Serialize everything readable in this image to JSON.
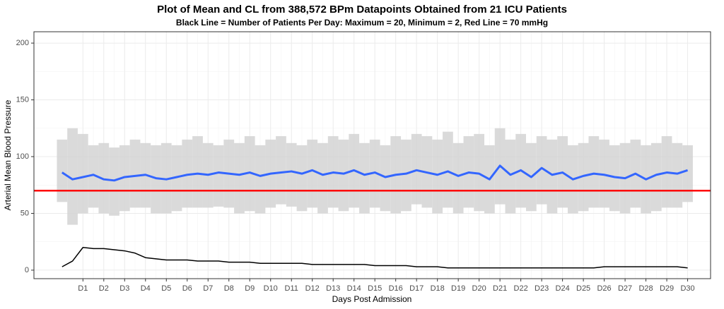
{
  "chart_data": {
    "type": "line",
    "title": "Plot of Mean and CL from 388,572 BPm Datapoints Obtained from 21 ICU Patients",
    "subtitle": "Black Line = Number of Patients Per Day: Maximum = 20, Minimum = 2, Red Line = 70 mmHg",
    "x_label": "Days Post Admission",
    "y_label": "Arterial Mean Blood Pressure",
    "x": [
      0,
      0.5,
      1,
      1.5,
      2,
      2.5,
      3,
      3.5,
      4,
      4.5,
      5,
      5.5,
      6,
      6.5,
      7,
      7.5,
      8,
      8.5,
      9,
      9.5,
      10,
      10.5,
      11,
      11.5,
      12,
      12.5,
      13,
      13.5,
      14,
      14.5,
      15,
      15.5,
      16,
      16.5,
      17,
      17.5,
      18,
      18.5,
      19,
      19.5,
      20,
      20.5,
      21,
      21.5,
      22,
      22.5,
      23,
      23.5,
      24,
      24.5,
      25,
      25.5,
      26,
      26.5,
      27,
      27.5,
      28,
      28.5,
      29,
      29.5,
      30
    ],
    "band": {
      "color": "#d3d3d3",
      "upper": [
        115,
        125,
        120,
        110,
        112,
        108,
        110,
        115,
        112,
        110,
        112,
        110,
        115,
        118,
        112,
        110,
        115,
        112,
        118,
        110,
        115,
        118,
        112,
        110,
        115,
        112,
        118,
        115,
        120,
        112,
        115,
        110,
        118,
        115,
        120,
        118,
        115,
        122,
        112,
        118,
        120,
        110,
        125,
        115,
        120,
        112,
        118,
        115,
        118,
        110,
        112,
        118,
        115,
        110,
        112,
        115,
        110,
        112,
        118,
        112,
        110
      ],
      "lower": [
        60,
        40,
        50,
        55,
        50,
        48,
        52,
        55,
        55,
        50,
        50,
        52,
        55,
        55,
        55,
        56,
        55,
        50,
        52,
        50,
        55,
        58,
        56,
        52,
        55,
        50,
        55,
        52,
        55,
        50,
        55,
        52,
        50,
        52,
        58,
        55,
        50,
        55,
        50,
        55,
        52,
        50,
        58,
        50,
        55,
        52,
        58,
        50,
        55,
        50,
        52,
        55,
        55,
        52,
        50,
        55,
        50,
        52,
        55,
        55,
        60
      ]
    },
    "series": [
      {
        "color": "#3366ff",
        "values": [
          86,
          80,
          82,
          84,
          80,
          79,
          82,
          83,
          84,
          81,
          80,
          82,
          84,
          85,
          84,
          86,
          85,
          84,
          86,
          83,
          85,
          86,
          87,
          85,
          88,
          84,
          86,
          85,
          88,
          84,
          86,
          82,
          84,
          85,
          88,
          86,
          84,
          87,
          83,
          86,
          85,
          80,
          92,
          84,
          88,
          82,
          90,
          84,
          86,
          80,
          83,
          85,
          84,
          82,
          81,
          85,
          80,
          84,
          86,
          85,
          88
        ]
      },
      {
        "color": "#000000",
        "values": [
          3,
          8,
          20,
          19,
          19,
          18,
          17,
          15,
          11,
          10,
          9,
          9,
          9,
          8,
          8,
          8,
          7,
          7,
          7,
          6,
          6,
          6,
          6,
          6,
          5,
          5,
          5,
          5,
          5,
          5,
          4,
          4,
          4,
          4,
          3,
          3,
          3,
          2,
          2,
          2,
          2,
          2,
          2,
          2,
          2,
          2,
          2,
          2,
          2,
          2,
          2,
          2,
          3,
          3,
          3,
          3,
          3,
          3,
          3,
          3,
          2
        ]
      }
    ],
    "hline": {
      "value": 70,
      "color": "#ff0000"
    },
    "xlim": [
      -1.35,
      31.1
    ],
    "xticks": [
      {
        "value": 1,
        "label": "D1"
      },
      {
        "value": 2,
        "label": "D2"
      },
      {
        "value": 3,
        "label": "D3"
      },
      {
        "value": 4,
        "label": "D4"
      },
      {
        "value": 5,
        "label": "D5"
      },
      {
        "value": 6,
        "label": "D6"
      },
      {
        "value": 7,
        "label": "D7"
      },
      {
        "value": 8,
        "label": "D8"
      },
      {
        "value": 9,
        "label": "D9"
      },
      {
        "value": 10,
        "label": "D10"
      },
      {
        "value": 11,
        "label": "D11"
      },
      {
        "value": 12,
        "label": "D12"
      },
      {
        "value": 13,
        "label": "D13"
      },
      {
        "value": 14,
        "label": "D14"
      },
      {
        "value": 15,
        "label": "D15"
      },
      {
        "value": 16,
        "label": "D16"
      },
      {
        "value": 17,
        "label": "D17"
      },
      {
        "value": 18,
        "label": "D18"
      },
      {
        "value": 19,
        "label": "D19"
      },
      {
        "value": 20,
        "label": "D20"
      },
      {
        "value": 21,
        "label": "D21"
      },
      {
        "value": 22,
        "label": "D22"
      },
      {
        "value": 23,
        "label": "D23"
      },
      {
        "value": 24,
        "label": "D24"
      },
      {
        "value": 25,
        "label": "D25"
      },
      {
        "value": 26,
        "label": "D26"
      },
      {
        "value": 27,
        "label": "D27"
      },
      {
        "value": 28,
        "label": "D28"
      },
      {
        "value": 29,
        "label": "D29"
      },
      {
        "value": 30,
        "label": "D30"
      }
    ],
    "ylim": [
      -7.5,
      210
    ],
    "yticks": [
      0,
      50,
      100,
      150,
      200
    ],
    "grid": true
  }
}
